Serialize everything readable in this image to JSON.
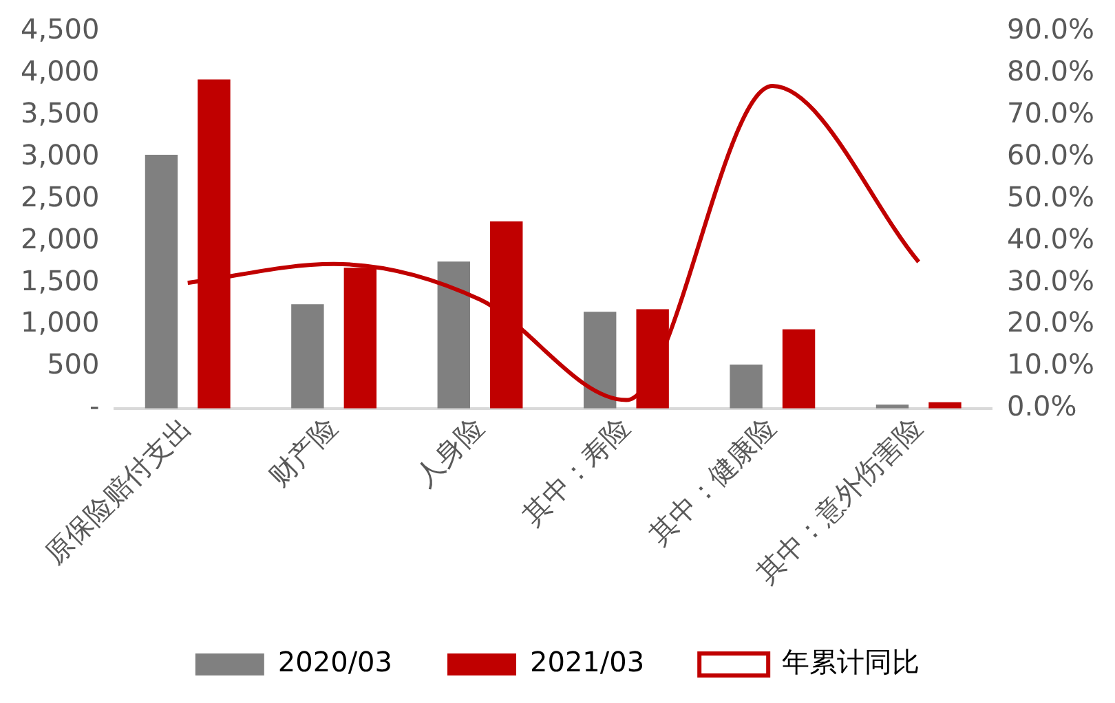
{
  "chart_data": {
    "type": "bar",
    "categories": [
      "原保险赔付支出",
      "财产险",
      "人身险",
      "其中：寿险",
      "其中：健康险",
      "其中：意外伤害险"
    ],
    "series": [
      {
        "name": "2020/03",
        "color": "#808080",
        "values": [
          3030,
          1245,
          1755,
          1155,
          525,
          45
        ]
      },
      {
        "name": "2021/03",
        "color": "#c00000",
        "values": [
          3930,
          1680,
          2235,
          1185,
          945,
          75
        ]
      },
      {
        "name": "年累计同比",
        "type": "line",
        "axis": "y2",
        "color": "#c00000",
        "values": [
          30,
          34.5,
          26,
          2,
          77,
          35
        ]
      }
    ],
    "ylim": [
      0,
      4500
    ],
    "yticks": [
      {
        "value": 0,
        "label": "-"
      },
      {
        "value": 500,
        "label": "500"
      },
      {
        "value": 1000,
        "label": "1,000"
      },
      {
        "value": 1500,
        "label": "1,500"
      },
      {
        "value": 2000,
        "label": "2,000"
      },
      {
        "value": 2500,
        "label": "2,500"
      },
      {
        "value": 3000,
        "label": "3,000"
      },
      {
        "value": 3500,
        "label": "3,500"
      },
      {
        "value": 4000,
        "label": "4,000"
      },
      {
        "value": 4500,
        "label": "4,500"
      }
    ],
    "y2lim": [
      0,
      90
    ],
    "y2ticks": [
      {
        "value": 0,
        "label": "0.0%"
      },
      {
        "value": 10,
        "label": "10.0%"
      },
      {
        "value": 20,
        "label": "20.0%"
      },
      {
        "value": 30,
        "label": "30.0%"
      },
      {
        "value": 40,
        "label": "40.0%"
      },
      {
        "value": 50,
        "label": "50.0%"
      },
      {
        "value": 60,
        "label": "60.0%"
      },
      {
        "value": 70,
        "label": "70.0%"
      },
      {
        "value": 80,
        "label": "80.0%"
      },
      {
        "value": 90,
        "label": "90.0%"
      }
    ],
    "grid": false,
    "legend": "bottom",
    "marker": "none"
  }
}
